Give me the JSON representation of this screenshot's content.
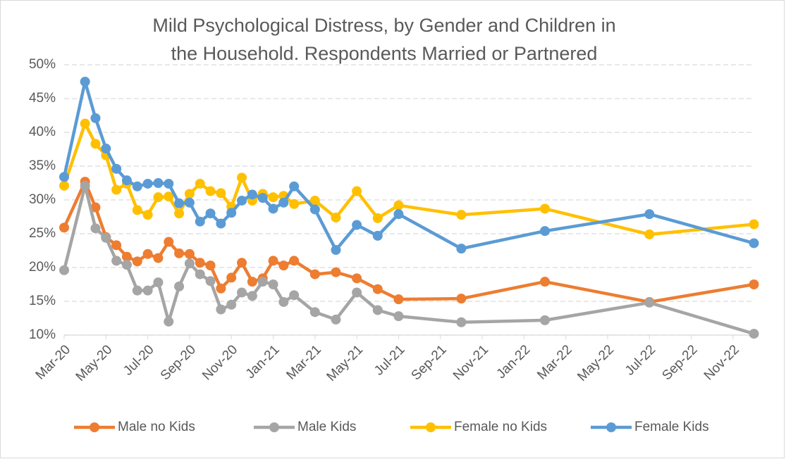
{
  "chart_data": {
    "type": "line",
    "title": [
      "Mild Psychological Distress, by Gender and Children in",
      "the Household. Respondents Married or Partnered"
    ],
    "x": [
      0,
      1,
      1.5,
      2,
      2.5,
      3,
      3.5,
      4,
      4.5,
      5,
      5.5,
      6,
      6.5,
      7,
      7.5,
      8,
      8.5,
      9,
      9.5,
      10,
      10.5,
      11,
      12,
      13,
      14,
      15,
      16,
      19,
      23,
      28,
      33
    ],
    "xlim": [
      0,
      33
    ],
    "xticks": [
      {
        "value": 0,
        "label": "Mar-20"
      },
      {
        "value": 2,
        "label": "May-20"
      },
      {
        "value": 4,
        "label": "Jul-20"
      },
      {
        "value": 6,
        "label": "Sep-20"
      },
      {
        "value": 8,
        "label": "Nov-20"
      },
      {
        "value": 10,
        "label": "Jan-21"
      },
      {
        "value": 12,
        "label": "Mar-21"
      },
      {
        "value": 14,
        "label": "May-21"
      },
      {
        "value": 16,
        "label": "Jul-21"
      },
      {
        "value": 18,
        "label": "Sep-21"
      },
      {
        "value": 20,
        "label": "Nov-21"
      },
      {
        "value": 22,
        "label": "Jan-22"
      },
      {
        "value": 24,
        "label": "Mar-22"
      },
      {
        "value": 26,
        "label": "May-22"
      },
      {
        "value": 28,
        "label": "Jul-22"
      },
      {
        "value": 30,
        "label": "Sep-22"
      },
      {
        "value": 32,
        "label": "Nov-22"
      }
    ],
    "ylim": [
      10,
      50
    ],
    "yticks": [
      {
        "value": 10,
        "label": "10%"
      },
      {
        "value": 15,
        "label": "15%"
      },
      {
        "value": 20,
        "label": "20%"
      },
      {
        "value": 25,
        "label": "25%"
      },
      {
        "value": 30,
        "label": "30%"
      },
      {
        "value": 35,
        "label": "35%"
      },
      {
        "value": 40,
        "label": "40%"
      },
      {
        "value": 45,
        "label": "45%"
      },
      {
        "value": 50,
        "label": "50%"
      }
    ],
    "grid": true,
    "legend": "bottom",
    "series": [
      {
        "name": "Male no Kids",
        "color": "#ed7d31",
        "values": [
          25.9,
          32.7,
          28.9,
          24.5,
          23.3,
          21.6,
          20.9,
          22,
          21.4,
          23.8,
          22.1,
          22,
          20.7,
          20.3,
          16.9,
          18.5,
          20.7,
          17.9,
          18.4,
          21,
          20.3,
          21,
          19,
          19.3,
          18.4,
          16.8,
          15.3,
          15.4,
          17.9,
          14.9,
          17.5
        ]
      },
      {
        "name": "Male Kids",
        "color": "#a5a5a5",
        "values": [
          19.6,
          32.1,
          25.8,
          24.4,
          21,
          20.4,
          16.6,
          16.6,
          17.8,
          12,
          17.2,
          20.6,
          19,
          18,
          13.8,
          14.5,
          16.3,
          15.8,
          17.9,
          17.5,
          14.9,
          15.9,
          13.4,
          12.3,
          16.3,
          13.7,
          12.8,
          11.9,
          12.2,
          14.8,
          10.2
        ]
      },
      {
        "name": "Female no Kids",
        "color": "#ffc000",
        "values": [
          32.1,
          41.3,
          38.3,
          36.6,
          31.5,
          32.4,
          28.5,
          27.8,
          30.4,
          30.5,
          28,
          30.9,
          32.4,
          31.3,
          31,
          29,
          33.3,
          29.9,
          30.9,
          30.4,
          30.6,
          29.4,
          29.9,
          27.4,
          31.3,
          27.3,
          29.2,
          27.8,
          28.7,
          24.9,
          26.4
        ]
      },
      {
        "name": "Female Kids",
        "color": "#5b9bd5",
        "values": [
          33.4,
          47.5,
          42.1,
          37.6,
          34.6,
          32.9,
          32,
          32.4,
          32.5,
          32.4,
          29.5,
          29.6,
          26.8,
          28,
          26.5,
          28.1,
          29.9,
          30.8,
          30.3,
          28.7,
          29.6,
          32,
          28.6,
          22.6,
          26.3,
          24.7,
          27.9,
          22.8,
          25.4,
          27.9,
          23.6
        ]
      }
    ]
  }
}
